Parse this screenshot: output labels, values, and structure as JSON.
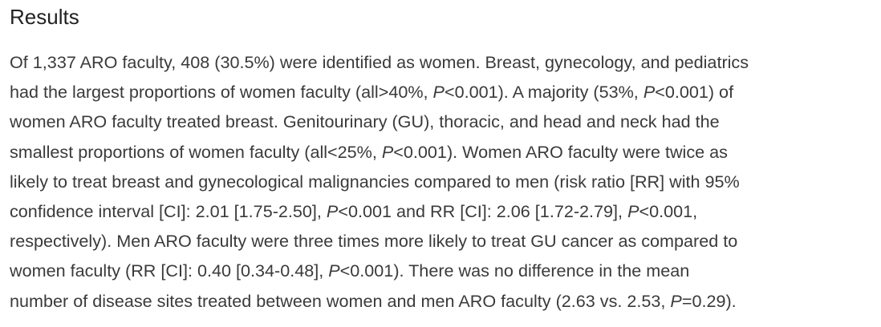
{
  "section": {
    "heading": "Results",
    "lines": [
      [
        {
          "t": "Of 1,337 ARO faculty, 408 (30.5%) were identified as women. Breast, gynecology, and pediatrics"
        }
      ],
      [
        {
          "t": "had the largest proportions of women faculty (all>40%, "
        },
        {
          "t": "P",
          "i": true
        },
        {
          "t": "<0.001). A majority (53%, "
        },
        {
          "t": "P",
          "i": true
        },
        {
          "t": "<0.001) of"
        }
      ],
      [
        {
          "t": "women ARO faculty treated breast. Genitourinary (GU), thoracic, and head and neck had the"
        }
      ],
      [
        {
          "t": "smallest proportions of women faculty (all<25%, "
        },
        {
          "t": "P",
          "i": true
        },
        {
          "t": "<0.001). Women ARO faculty were twice as"
        }
      ],
      [
        {
          "t": "likely to treat breast and gynecological malignancies compared to men (risk ratio [RR] with 95%"
        }
      ],
      [
        {
          "t": "confidence interval [CI]: 2.01 [1.75-2.50], "
        },
        {
          "t": "P",
          "i": true
        },
        {
          "t": "<0.001 and RR [CI]: 2.06 [1.72-2.79], "
        },
        {
          "t": "P",
          "i": true
        },
        {
          "t": "<0.001,"
        }
      ],
      [
        {
          "t": "respectively). Men ARO faculty were three times more likely to treat GU cancer as compared to"
        }
      ],
      [
        {
          "t": "women faculty (RR [CI]: 0.40 [0.34-0.48], "
        },
        {
          "t": "P",
          "i": true
        },
        {
          "t": "<0.001). There was no difference in the mean"
        }
      ],
      [
        {
          "t": "number of disease sites treated between women and men ARO faculty (2.63 vs. 2.53, "
        },
        {
          "t": "P",
          "i": true
        },
        {
          "t": "=0.29)."
        }
      ]
    ]
  }
}
